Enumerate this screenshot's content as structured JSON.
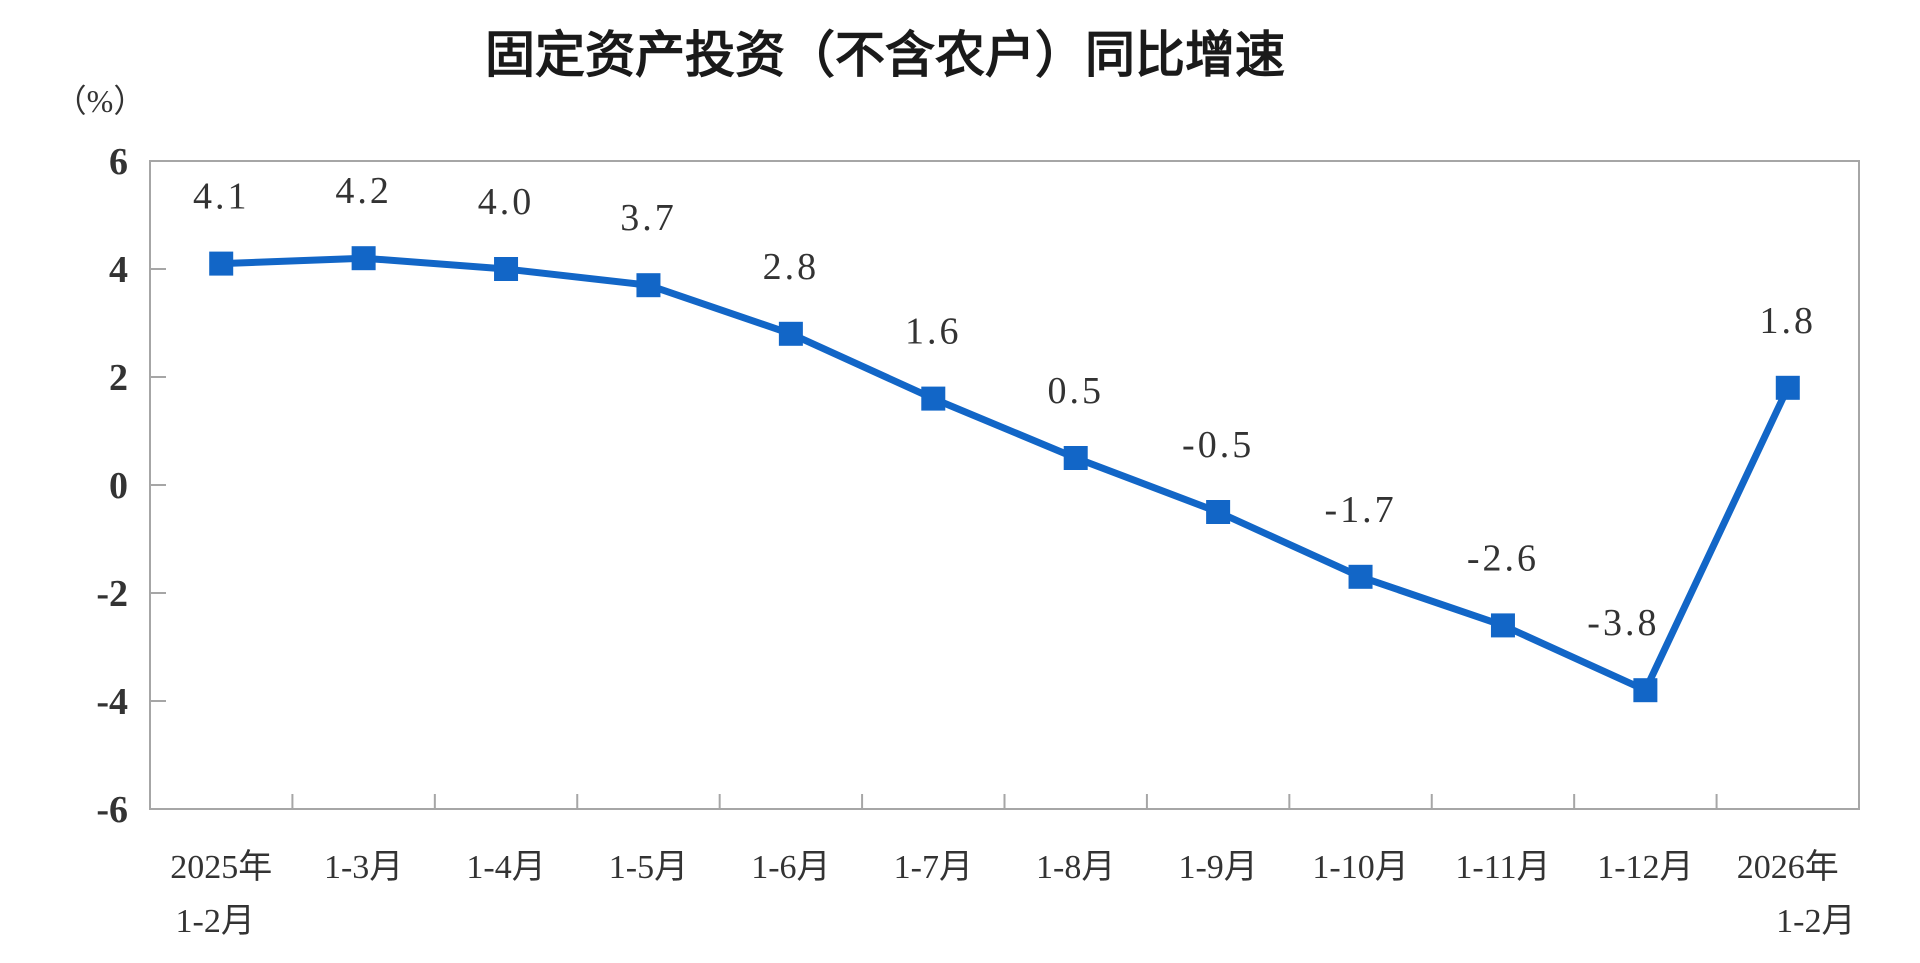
{
  "page": {
    "background_color": "#ffffff"
  },
  "chart_data": {
    "type": "line",
    "title": "固定资产投资（不含农户）同比增速",
    "unit_label": "（%）",
    "categories": [
      [
        "2025年",
        "1-2月"
      ],
      [
        "1-3月",
        ""
      ],
      [
        "1-4月",
        ""
      ],
      [
        "1-5月",
        ""
      ],
      [
        "1-6月",
        ""
      ],
      [
        "1-7月",
        ""
      ],
      [
        "1-8月",
        ""
      ],
      [
        "1-9月",
        ""
      ],
      [
        "1-10月",
        ""
      ],
      [
        "1-11月",
        ""
      ],
      [
        "1-12月",
        ""
      ],
      [
        "2026年",
        "1-2月"
      ]
    ],
    "values": [
      4.1,
      4.2,
      4.0,
      3.7,
      2.8,
      1.6,
      0.5,
      -0.5,
      -1.7,
      -2.6,
      -3.8,
      1.8
    ],
    "point_labels": [
      "4.1",
      "4.2",
      "4.0",
      "3.7",
      "2.8",
      "1.6",
      "0.5",
      "-0.5",
      "-1.7",
      "-2.6",
      "-3.8",
      "1.8"
    ],
    "xlabel": "",
    "ylabel": "（%）",
    "ylim": [
      -6,
      6
    ],
    "yticks": [
      6,
      4,
      2,
      0,
      -2,
      -4,
      -6
    ],
    "grid": false,
    "legend_position": "none",
    "line_color": "#1266C7",
    "marker": "square",
    "axis_color": "#a6a6a6",
    "label_color": "#333333",
    "title_color": "#1a1a1a"
  }
}
